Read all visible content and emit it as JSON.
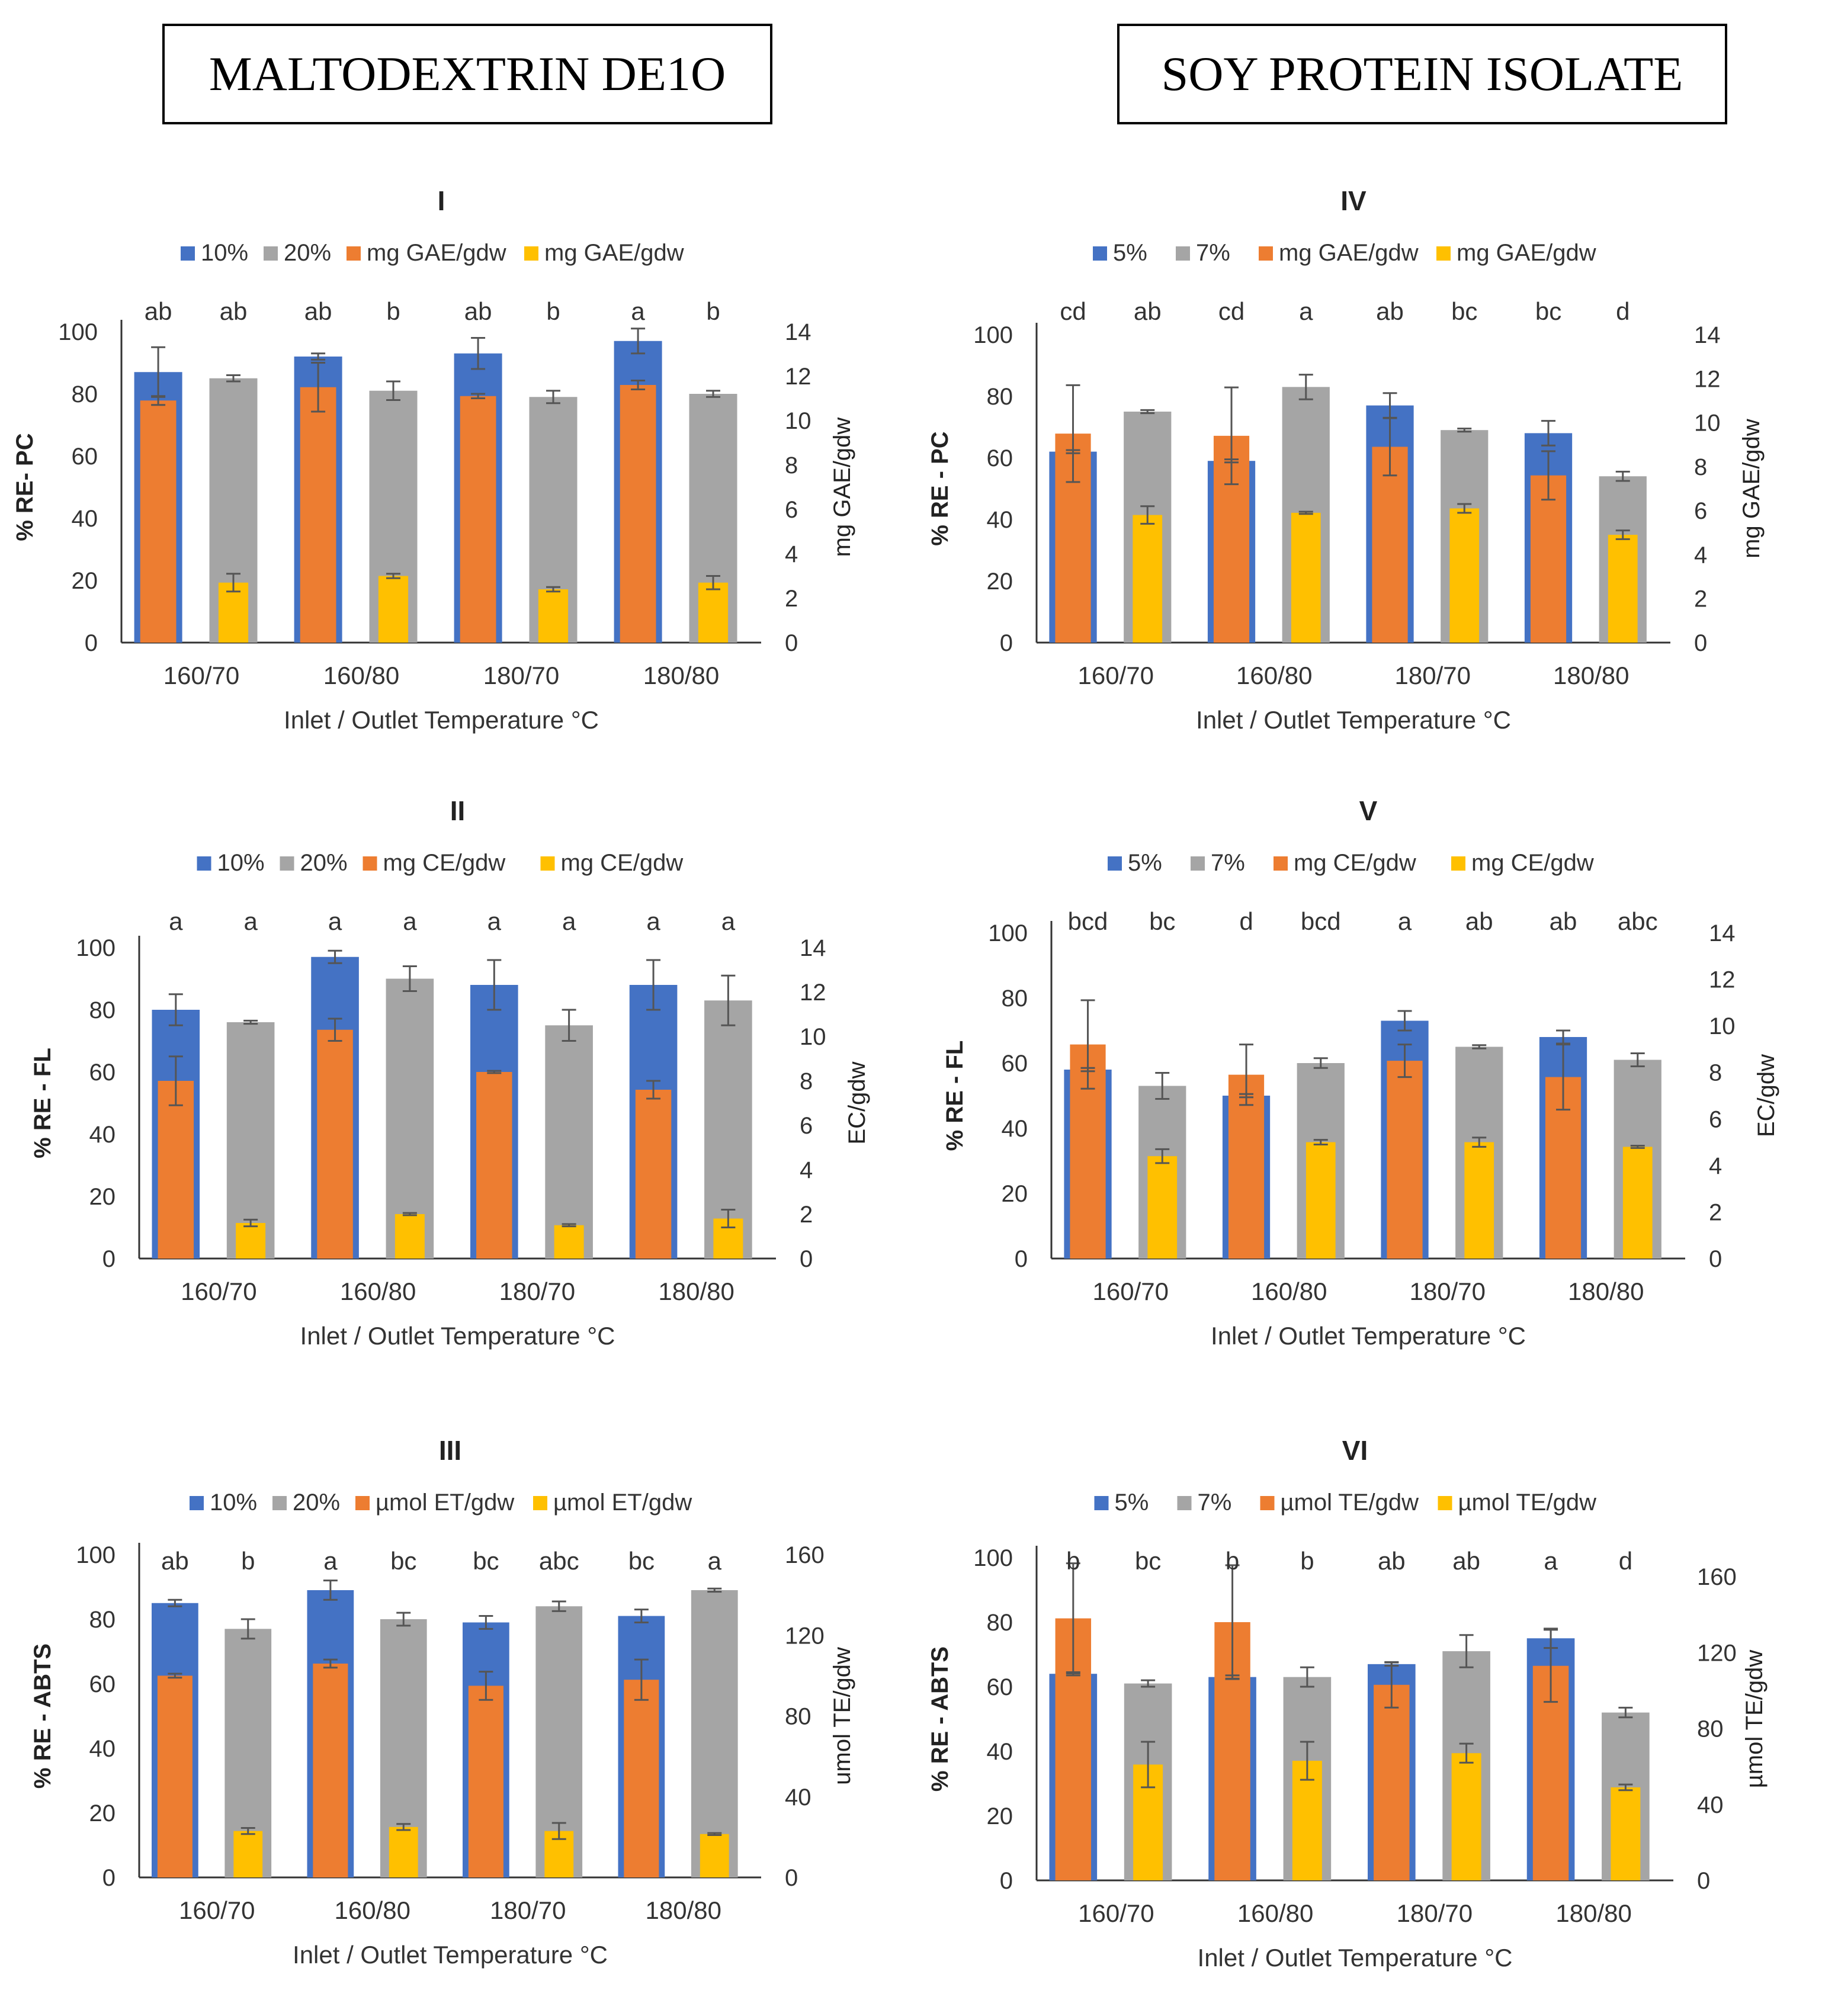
{
  "headers": {
    "left": "MALTODEXTRIN DE1O",
    "right": "SOY PROTEIN ISOLATE"
  },
  "colors": {
    "blue": "#4472C4",
    "gray": "#A5A5A5",
    "orange": "#ED7D31",
    "yellow": "#FFC000"
  },
  "chart_data": [
    {
      "type": "bar",
      "title": "I",
      "legend": [
        "10%",
        "20%",
        "mg GAE/gdw",
        "mg GAE/gdw"
      ],
      "categories": [
        "160/70",
        "160/80",
        "180/70",
        "180/80"
      ],
      "xlabel": "Inlet / Outlet Temperature °C",
      "ylabel": "% RE- PC",
      "y2label": "mg GAE/gdw",
      "ylim": [
        0,
        100
      ],
      "y2lim": [
        0,
        14
      ],
      "yticks": [
        "0",
        "20",
        "40",
        "60",
        "80",
        "100"
      ],
      "y2ticks": [
        "0",
        "2",
        "4",
        "6",
        "8",
        "10",
        "12",
        "14"
      ],
      "series": [
        {
          "name": "10%",
          "values": [
            87,
            92,
            93,
            97
          ],
          "errors": [
            8,
            1,
            5,
            4
          ]
        },
        {
          "name": "20%",
          "values": [
            85,
            81,
            79,
            80
          ],
          "errors": [
            1,
            3,
            2,
            1
          ]
        },
        {
          "name": "mg GAE/gdw",
          "values": [
            10.9,
            11.5,
            11.1,
            11.6
          ],
          "errors": [
            0.2,
            1.1,
            0.1,
            0.2
          ]
        },
        {
          "name": "mg GAE/gdw",
          "values": [
            2.7,
            3.0,
            2.4,
            2.7
          ],
          "errors": [
            0.4,
            0.1,
            0.1,
            0.3
          ]
        }
      ],
      "letters": [
        "ab",
        "ab",
        "ab",
        "b",
        "ab",
        "b",
        "a",
        "b"
      ]
    },
    {
      "type": "bar",
      "title": "II",
      "legend": [
        "10%",
        "20%",
        "mg CE/gdw",
        "mg CE/gdw"
      ],
      "categories": [
        "160/70",
        "160/80",
        "180/70",
        "180/80"
      ],
      "xlabel": "Inlet / Outlet Temperature °C",
      "ylabel": "% RE - FL",
      "y2label": "EC/gdw",
      "ylim": [
        0,
        100
      ],
      "y2lim": [
        0,
        14
      ],
      "yticks": [
        "0",
        "20",
        "40",
        "60",
        "80",
        "100"
      ],
      "y2ticks": [
        "0",
        "2",
        "4",
        "6",
        "8",
        "10",
        "12",
        "14"
      ],
      "series": [
        {
          "name": "10%",
          "values": [
            80,
            97,
            88,
            88
          ],
          "errors": [
            5,
            2,
            8,
            8
          ]
        },
        {
          "name": "20%",
          "values": [
            76,
            90,
            75,
            83
          ],
          "errors": [
            0.5,
            4,
            5,
            8
          ]
        },
        {
          "name": "mg CE/gdw",
          "values": [
            8.0,
            10.3,
            8.4,
            7.6
          ],
          "errors": [
            1.1,
            0.5,
            0.05,
            0.4
          ]
        },
        {
          "name": "mg CE/gdw",
          "values": [
            1.6,
            2.0,
            1.5,
            1.8
          ],
          "errors": [
            0.15,
            0.05,
            0.05,
            0.4
          ]
        }
      ],
      "letters": [
        "a",
        "a",
        "a",
        "a",
        "a",
        "a",
        "a",
        "a"
      ]
    },
    {
      "type": "bar",
      "title": "III",
      "legend": [
        "10%",
        "20%",
        "µmol ET/gdw",
        "µmol ET/gdw"
      ],
      "categories": [
        "160/70",
        "160/80",
        "180/70",
        "180/80"
      ],
      "xlabel": "Inlet / Outlet Temperature °C",
      "ylabel": "% RE - ABTS",
      "y2label": "umol TE/gdw",
      "ylim": [
        0,
        100
      ],
      "y2lim": [
        0,
        160
      ],
      "yticks": [
        "0",
        "20",
        "40",
        "60",
        "80",
        "100"
      ],
      "y2ticks": [
        "0",
        "40",
        "80",
        "120",
        "160"
      ],
      "series": [
        {
          "name": "10%",
          "values": [
            85,
            89,
            79,
            81
          ],
          "errors": [
            1,
            3,
            2,
            2
          ]
        },
        {
          "name": "20%",
          "values": [
            77,
            80,
            84,
            89
          ],
          "errors": [
            3,
            2,
            1.5,
            0.5
          ]
        },
        {
          "name": "µmol ET/gdw",
          "values": [
            100,
            106,
            95,
            98
          ],
          "errors": [
            1,
            2,
            7,
            10
          ]
        },
        {
          "name": "µmol ET/gdw",
          "values": [
            23,
            25,
            23,
            21.5
          ],
          "errors": [
            1.5,
            1.5,
            4,
            0.5
          ]
        }
      ],
      "letters": [
        "ab",
        "b",
        "a",
        "bc",
        "bc",
        "abc",
        "bc",
        "a"
      ]
    },
    {
      "type": "bar",
      "title": "IV",
      "legend": [
        "5%",
        "7%",
        "mg GAE/gdw",
        "mg GAE/gdw"
      ],
      "categories": [
        "160/70",
        "160/80",
        "180/70",
        "180/80"
      ],
      "xlabel": "Inlet / Outlet Temperature °C",
      "ylabel": "% RE - PC",
      "y2label": "mg GAE/gdw",
      "ylim": [
        0,
        100
      ],
      "y2lim": [
        0,
        14
      ],
      "yticks": [
        "0",
        "20",
        "40",
        "60",
        "80",
        "100"
      ],
      "y2ticks": [
        "0",
        "2",
        "4",
        "6",
        "8",
        "10",
        "12",
        "14"
      ],
      "series": [
        {
          "name": "5%",
          "values": [
            62,
            59,
            77,
            68
          ],
          "errors": [
            0.5,
            0.5,
            4,
            4
          ]
        },
        {
          "name": "7%",
          "values": [
            75,
            83,
            69,
            54
          ],
          "errors": [
            0.5,
            4,
            0.5,
            1.5
          ]
        },
        {
          "name": "mg GAE/gdw",
          "values": [
            9.5,
            9.4,
            8.9,
            7.6
          ],
          "errors": [
            2.2,
            2.2,
            1.3,
            1.1
          ]
        },
        {
          "name": "mg GAE/gdw",
          "values": [
            5.8,
            5.9,
            6.1,
            4.9
          ],
          "errors": [
            0.4,
            0.05,
            0.2,
            0.2
          ]
        }
      ],
      "letters": [
        "cd",
        "ab",
        "cd",
        "a",
        "ab",
        "bc",
        "bc",
        "d"
      ]
    },
    {
      "type": "bar",
      "title": "V",
      "legend": [
        "5%",
        "7%",
        "mg CE/gdw",
        "mg CE/gdw"
      ],
      "categories": [
        "160/70",
        "160/80",
        "180/70",
        "180/80"
      ],
      "xlabel": "Inlet / Outlet Temperature °C",
      "ylabel": "% RE - FL",
      "y2label": "EC/gdw",
      "ylim": [
        0,
        100
      ],
      "y2lim": [
        0,
        14
      ],
      "yticks": [
        "0",
        "20",
        "40",
        "60",
        "80",
        "100"
      ],
      "y2ticks": [
        "0",
        "2",
        "4",
        "6",
        "8",
        "10",
        "12",
        "14"
      ],
      "series": [
        {
          "name": "5%",
          "values": [
            58,
            50,
            73,
            68
          ],
          "errors": [
            0.5,
            0.5,
            3,
            2
          ]
        },
        {
          "name": "7%",
          "values": [
            53,
            60,
            65,
            61
          ],
          "errors": [
            4,
            1.5,
            0.5,
            2
          ]
        },
        {
          "name": "mg CE/gdw",
          "values": [
            9.2,
            7.9,
            8.5,
            7.8
          ],
          "errors": [
            1.9,
            1.3,
            0.7,
            1.4
          ]
        },
        {
          "name": "mg CE/gdw",
          "values": [
            4.4,
            5.0,
            5.0,
            4.8
          ],
          "errors": [
            0.3,
            0.1,
            0.2,
            0.05
          ]
        }
      ],
      "letters": [
        "bcd",
        "bc",
        "d",
        "bcd",
        "a",
        "ab",
        "ab",
        "abc"
      ]
    },
    {
      "type": "bar",
      "title": "VI",
      "legend": [
        "5%",
        "7%",
        "µmol TE/gdw",
        "µmol TE/gdw"
      ],
      "categories": [
        "160/70",
        "160/80",
        "180/70",
        "180/80"
      ],
      "xlabel": "Inlet / Outlet Temperature °C",
      "ylabel": "% RE - ABTS",
      "y2label": "µmol TE/gdw",
      "ylim": [
        0,
        100
      ],
      "y2lim": [
        0,
        170
      ],
      "yticks": [
        "0",
        "20",
        "40",
        "60",
        "80",
        "100"
      ],
      "y2ticks": [
        "0",
        "40",
        "80",
        "120",
        "160"
      ],
      "series": [
        {
          "name": "5%",
          "values": [
            64,
            63,
            67,
            75
          ],
          "errors": [
            0.5,
            0.5,
            0.5,
            3
          ]
        },
        {
          "name": "7%",
          "values": [
            61,
            63,
            71,
            52
          ],
          "errors": [
            1,
            3,
            5,
            1.5
          ]
        },
        {
          "name": "µmol TE/gdw",
          "values": [
            138,
            136,
            103,
            113
          ],
          "errors": [
            29,
            30,
            12,
            19
          ]
        },
        {
          "name": "µmol TE/gdw",
          "values": [
            61,
            63,
            67,
            49
          ],
          "errors": [
            12,
            10,
            5,
            1.5
          ]
        }
      ],
      "letters": [
        "b",
        "bc",
        "b",
        "b",
        "ab",
        "ab",
        "a",
        "d"
      ]
    }
  ]
}
